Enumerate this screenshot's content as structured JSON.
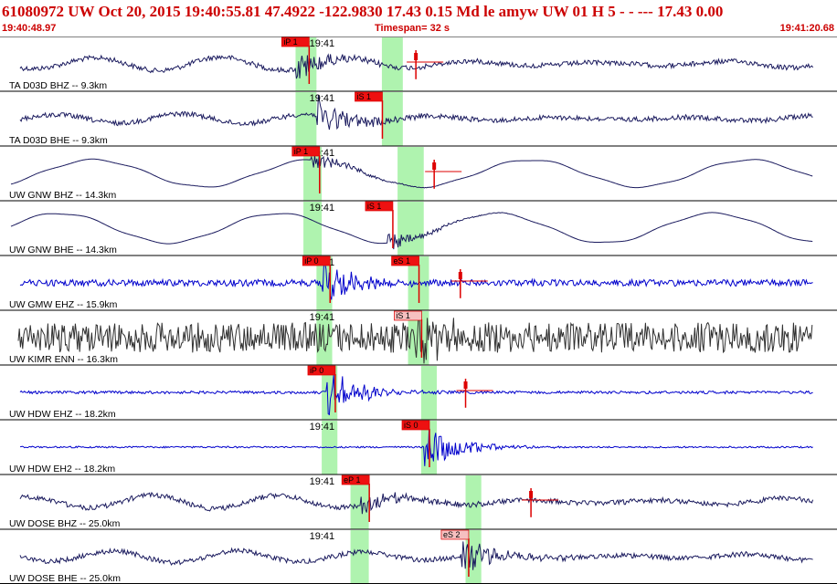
{
  "header": {
    "title": "61080972 UW Oct 20, 2015 19:40:55.81   47.4922 -122.9830 17.43 0.15 Md le     amyw      UW 01 H     5   -  - --- 17.43 0.00",
    "start_time": "19:40:48.97",
    "timespan": "Timespan=  32 s",
    "end_time": "19:41:20.68"
  },
  "colors": {
    "header_text": "#cc0000",
    "trace_dark": "#1a1a5e",
    "trace_blue": "#0000cc",
    "trace_black": "#303030",
    "pick_red": "#dd0000",
    "pick_label_bg": "#ee1111",
    "pick_label_pale_bg": "#f6c0c0",
    "pick_window": "#a6f2a6",
    "minute_mark_label": "19:41"
  },
  "chart_data": {
    "type": "line",
    "title": "",
    "x_unit": "time",
    "x_start": "19:40:48.97",
    "x_end": "19:41:20.68",
    "timespan_s": 32,
    "minute_mark": "19:41",
    "traces": [
      {
        "label": "TA D03D BHZ -- 9.3km",
        "style": "dark",
        "wave": "lowfreq",
        "amp": 0.25,
        "onset_s": 11.3,
        "event_amp": 0.55,
        "picks": [
          {
            "label": "iP 1",
            "t": 11.4,
            "pale": false
          },
          {
            "t": 15.9,
            "label": "",
            "pale": false
          }
        ],
        "windows": [
          [
            11.3,
            12.1
          ],
          [
            14.6,
            15.4
          ]
        ]
      },
      {
        "label": "TA D03D BHE -- 9.3km",
        "style": "dark",
        "wave": "lowfreq",
        "amp": 0.18,
        "onset_s": 12.1,
        "event_amp": 0.75,
        "picks": [
          {
            "label": "iS 1",
            "t": 14.2,
            "pale": false
          }
        ],
        "windows": [
          [
            11.3,
            12.1
          ],
          [
            14.6,
            15.4
          ]
        ]
      },
      {
        "label": "UW GNW BHZ -- 14.3km",
        "style": "dark",
        "wave": "swell",
        "amp": 0.55,
        "onset_s": 11.9,
        "event_amp": 0.35,
        "picks": [
          {
            "label": "iP 1",
            "t": 11.8,
            "pale": false
          },
          {
            "t": 16.6,
            "label": "",
            "pale": false
          }
        ],
        "windows": [
          [
            11.6,
            12.3
          ],
          [
            15.2,
            16.2
          ]
        ]
      },
      {
        "label": "UW GNW BHE -- 14.3km",
        "style": "dark",
        "wave": "swell",
        "amp": 0.6,
        "onset_s": 14.8,
        "event_amp": 0.35,
        "picks": [
          {
            "label": "iS 1",
            "t": 14.6,
            "pale": false
          }
        ],
        "windows": [
          [
            11.6,
            12.3
          ],
          [
            15.2,
            16.2
          ]
        ]
      },
      {
        "label": "UW GMW EHZ -- 15.9km",
        "style": "blue",
        "wave": "noise",
        "amp": 0.12,
        "onset_s": 12.3,
        "event_amp": 0.85,
        "picks": [
          {
            "label": "iP 0",
            "t": 12.2,
            "pale": false
          },
          {
            "label": "eS 1",
            "t": 15.6,
            "pale": false
          },
          {
            "t": 17.6,
            "label": "",
            "pale": false
          }
        ],
        "windows": [
          [
            12.1,
            12.7
          ],
          [
            15.6,
            16.4
          ]
        ]
      },
      {
        "label": "UW KIMR ENN -- 16.3km",
        "style": "black",
        "wave": "noise",
        "amp": 0.55,
        "onset_s": 15.8,
        "event_amp": 0.75,
        "picks": [
          {
            "label": "iS 1",
            "t": 15.7,
            "pale": true
          }
        ],
        "windows": [
          [
            12.1,
            12.7
          ],
          [
            15.6,
            16.4
          ]
        ]
      },
      {
        "label": "UW HDW EHZ -- 18.2km",
        "style": "blue",
        "wave": "noise",
        "amp": 0.05,
        "onset_s": 12.5,
        "event_amp": 0.9,
        "picks": [
          {
            "label": "iP 0",
            "t": 12.4,
            "pale": false
          },
          {
            "t": 17.8,
            "label": "",
            "pale": false
          }
        ],
        "windows": [
          [
            12.3,
            12.9
          ],
          [
            16.1,
            16.7
          ]
        ]
      },
      {
        "label": "UW HDW EH2 -- 18.2km",
        "style": "blue",
        "wave": "noise",
        "amp": 0.03,
        "onset_s": 16.2,
        "event_amp": 0.9,
        "picks": [
          {
            "label": "iS 0",
            "t": 16.0,
            "pale": false
          }
        ],
        "windows": [
          [
            12.3,
            12.9
          ],
          [
            16.1,
            16.7
          ]
        ]
      },
      {
        "label": "UW DOSE BHZ -- 25.0km",
        "style": "dark",
        "wave": "lowfreq",
        "amp": 0.25,
        "onset_s": 13.8,
        "event_amp": 0.45,
        "picks": [
          {
            "label": "eP 1",
            "t": 13.7,
            "pale": false
          },
          {
            "t": 20.3,
            "label": "",
            "pale": false
          }
        ],
        "windows": [
          [
            13.4,
            14.1
          ],
          [
            17.8,
            18.4
          ]
        ]
      },
      {
        "label": "UW DOSE BHE -- 25.0km",
        "style": "dark",
        "wave": "lowfreq",
        "amp": 0.22,
        "onset_s": 17.6,
        "event_amp": 0.85,
        "picks": [
          {
            "label": "eS 2",
            "t": 17.5,
            "pale": true
          }
        ],
        "windows": [
          [
            13.4,
            14.1
          ],
          [
            17.8,
            18.4
          ]
        ]
      }
    ]
  }
}
